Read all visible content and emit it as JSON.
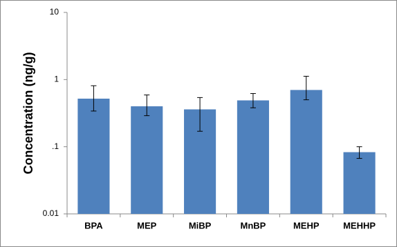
{
  "chart_data": {
    "type": "bar",
    "y_label": "Concentration  (ng/g)",
    "categories": [
      "BPA",
      "MEP",
      "MiBP",
      "MnBP",
      "MEHP",
      "MEHHP"
    ],
    "values": [
      0.52,
      0.4,
      0.36,
      0.49,
      0.7,
      0.083
    ],
    "error_low": [
      0.34,
      0.29,
      0.17,
      0.38,
      0.5,
      0.067
    ],
    "error_high": [
      0.81,
      0.59,
      0.54,
      0.62,
      1.12,
      0.1
    ],
    "color": "#4f81bd",
    "ylim": [
      0.01,
      10
    ],
    "yticks": [
      0.01,
      {
        "value": 0.1,
        "label": ".1"
      },
      1,
      10
    ],
    "log_scale": true,
    "grid": false
  }
}
